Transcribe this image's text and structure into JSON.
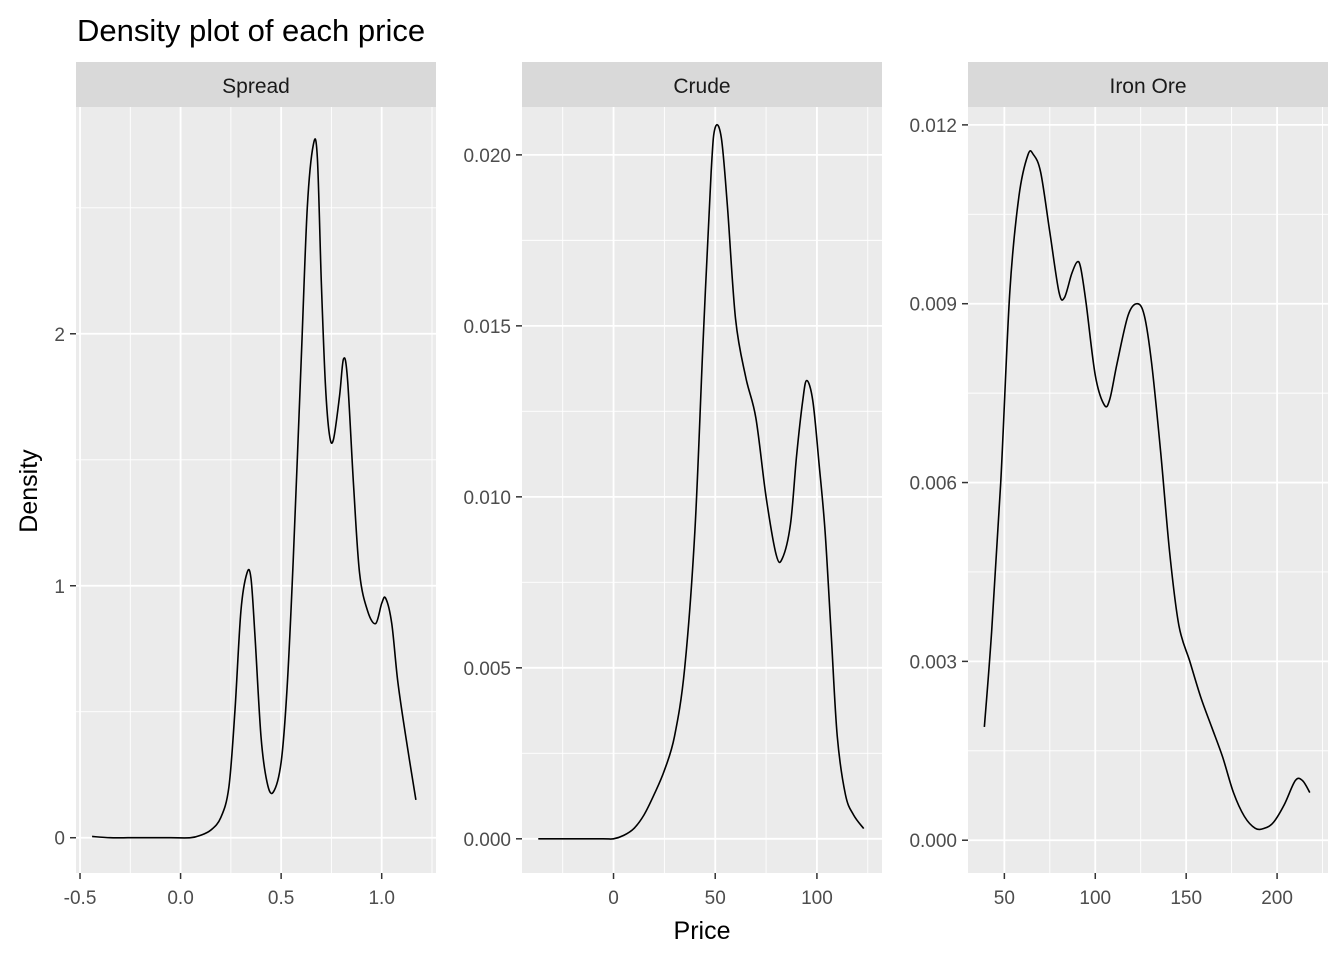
{
  "chart_data": {
    "type": "line",
    "title": "Density plot of each price",
    "xlabel": "Price",
    "ylabel": "Density",
    "grid": true,
    "colors": {
      "panel_bg": "#ebebeb",
      "strip_bg": "#d9d9d9",
      "grid": "#ffffff",
      "line": "#000000",
      "tick": "#333333"
    },
    "panels": [
      {
        "name": "Spread",
        "xlim": [
          -0.52,
          1.27
        ],
        "ylim": [
          -0.14,
          2.9
        ],
        "xticks": [
          -0.5,
          0.0,
          0.5,
          1.0
        ],
        "xtick_labels": [
          "-0.5",
          "0.0",
          "0.5",
          "1.0"
        ],
        "yticks": [
          0,
          1,
          2
        ],
        "ytick_labels": [
          "0",
          "1",
          "2"
        ],
        "series": [
          {
            "x": [
              -0.44,
              -0.35,
              -0.25,
              -0.15,
              -0.05,
              0.05,
              0.1,
              0.15,
              0.2,
              0.24,
              0.27,
              0.3,
              0.33,
              0.35,
              0.37,
              0.4,
              0.43,
              0.46,
              0.5,
              0.53,
              0.56,
              0.6,
              0.63,
              0.66,
              0.68,
              0.7,
              0.72,
              0.74,
              0.76,
              0.79,
              0.81,
              0.83,
              0.86,
              0.89,
              0.93,
              0.97,
              1.0,
              1.02,
              1.05,
              1.08,
              1.12,
              1.17
            ],
            "y": [
              0.005,
              0.0,
              0.0,
              0.0,
              0.0,
              0.0,
              0.01,
              0.03,
              0.08,
              0.2,
              0.5,
              0.9,
              1.05,
              1.03,
              0.8,
              0.4,
              0.22,
              0.18,
              0.3,
              0.6,
              1.1,
              1.9,
              2.5,
              2.75,
              2.7,
              2.2,
              1.8,
              1.6,
              1.58,
              1.75,
              1.9,
              1.82,
              1.4,
              1.05,
              0.9,
              0.85,
              0.93,
              0.95,
              0.85,
              0.62,
              0.4,
              0.15
            ]
          }
        ]
      },
      {
        "name": "Crude",
        "xlim": [
          -45,
          132
        ],
        "ylim": [
          -0.001,
          0.0214
        ],
        "xticks": [
          0,
          50,
          100
        ],
        "xtick_labels": [
          "0",
          "50",
          "100"
        ],
        "yticks": [
          0.0,
          0.005,
          0.01,
          0.015,
          0.02
        ],
        "ytick_labels": [
          "0.000",
          "0.005",
          "0.010",
          "0.015",
          "0.020"
        ],
        "series": [
          {
            "x": [
              -37,
              -20,
              -5,
              0,
              5,
              10,
              15,
              20,
              25,
              30,
              35,
              40,
              44,
              48,
              50,
              53,
              56,
              60,
              65,
              70,
              75,
              80,
              83,
              87,
              90,
              93,
              95,
              98,
              101,
              104,
              107,
              110,
              114,
              118,
              123
            ],
            "y": [
              0.0,
              0.0,
              0.0,
              0.0,
              0.0001,
              0.0003,
              0.0007,
              0.0013,
              0.002,
              0.003,
              0.005,
              0.009,
              0.0145,
              0.0195,
              0.0208,
              0.0205,
              0.0185,
              0.0152,
              0.0135,
              0.0123,
              0.01,
              0.0083,
              0.0082,
              0.0092,
              0.0112,
              0.0128,
              0.0134,
              0.0128,
              0.011,
              0.009,
              0.006,
              0.003,
              0.0013,
              0.0007,
              0.0003
            ]
          }
        ]
      },
      {
        "name": "Iron Ore",
        "xlim": [
          30,
          228
        ],
        "ylim": [
          -0.00055,
          0.0123
        ],
        "xticks": [
          50,
          100,
          150,
          200
        ],
        "xtick_labels": [
          "50",
          "100",
          "150",
          "200"
        ],
        "yticks": [
          0.0,
          0.003,
          0.006,
          0.009,
          0.012
        ],
        "ytick_labels": [
          "0.000",
          "0.003",
          "0.006",
          "0.009",
          "0.012"
        ],
        "series": [
          {
            "x": [
              39,
              43,
              48,
              53,
              58,
              63,
              66,
              70,
              75,
              80,
              83,
              87,
              90,
              92,
              95,
              100,
              105,
              108,
              112,
              118,
              123,
              127,
              131,
              136,
              141,
              146,
              152,
              158,
              164,
              170,
              176,
              182,
              188,
              193,
              198,
              204,
              210,
              214,
              218
            ],
            "y": [
              0.0019,
              0.0035,
              0.006,
              0.0092,
              0.0108,
              0.0115,
              0.0115,
              0.0112,
              0.0102,
              0.0092,
              0.0091,
              0.0095,
              0.0097,
              0.0096,
              0.009,
              0.0078,
              0.0073,
              0.0074,
              0.008,
              0.0088,
              0.009,
              0.0088,
              0.008,
              0.0065,
              0.0048,
              0.0036,
              0.003,
              0.0024,
              0.0019,
              0.0014,
              0.0008,
              0.0004,
              0.0002,
              0.0002,
              0.0003,
              0.0006,
              0.001,
              0.001,
              0.0008
            ]
          }
        ]
      }
    ]
  }
}
